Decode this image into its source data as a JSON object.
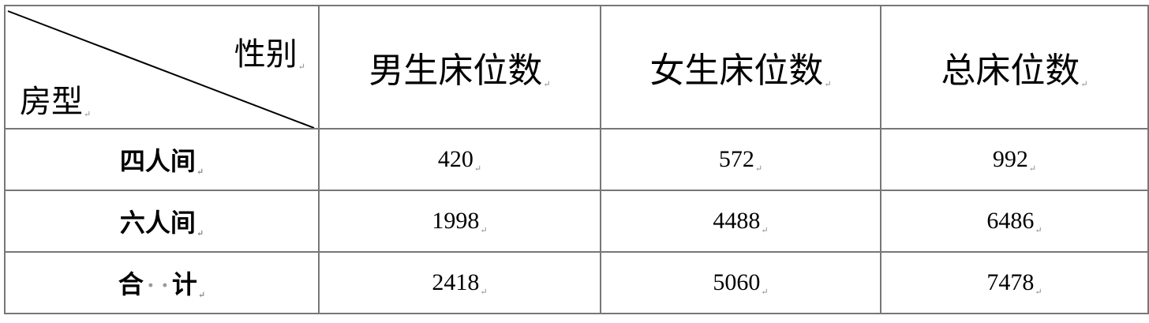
{
  "table": {
    "corner": {
      "top_right": "性别",
      "bottom_left": "房型"
    },
    "columns": [
      "男生床位数",
      "女生床位数",
      "总床位数"
    ],
    "rows": [
      {
        "label": "四人间",
        "values": [
          "420",
          "572",
          "992"
        ]
      },
      {
        "label": "六人间",
        "values": [
          "1998",
          "4488",
          "6486"
        ]
      }
    ],
    "total": {
      "label_parts": [
        "合",
        "计"
      ],
      "values": [
        "2418",
        "5060",
        "7478"
      ]
    },
    "paragraph_mark": "↵"
  }
}
